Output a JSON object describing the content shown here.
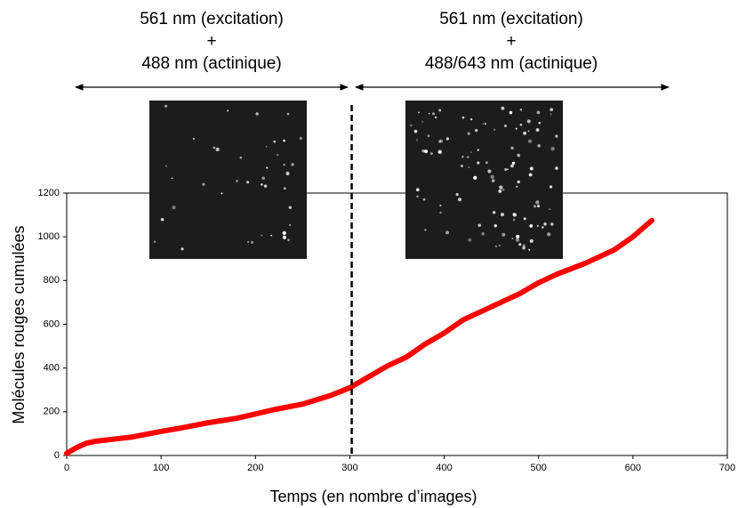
{
  "chart_data": {
    "type": "line",
    "xlabel": "Temps (en nombre d’images)",
    "ylabel": "Molécules rouges cumulées",
    "xlim": [
      0,
      700
    ],
    "xticks": [
      0,
      100,
      200,
      300,
      400,
      500,
      600,
      700
    ],
    "ylim": [
      0,
      1200
    ],
    "yticks": [
      0,
      200,
      400,
      600,
      800,
      1000,
      1200
    ],
    "vline_x": 302,
    "annotations": [
      "561 nm (excitation)",
      "+",
      "488 nm (actinique)",
      "561 nm (excitation)",
      "+",
      "488/643 nm (actinique)"
    ],
    "series": [
      {
        "color": "#ff0000",
        "x": [
          0,
          10,
          20,
          30,
          50,
          70,
          100,
          120,
          150,
          180,
          200,
          220,
          250,
          280,
          300,
          320,
          340,
          360,
          380,
          400,
          420,
          450,
          480,
          500,
          520,
          550,
          580,
          600,
          620
        ],
        "values": [
          10,
          35,
          55,
          65,
          75,
          85,
          110,
          125,
          150,
          170,
          190,
          210,
          235,
          275,
          310,
          360,
          410,
          450,
          510,
          560,
          620,
          680,
          740,
          790,
          830,
          880,
          940,
          1000,
          1075
        ]
      }
    ]
  }
}
